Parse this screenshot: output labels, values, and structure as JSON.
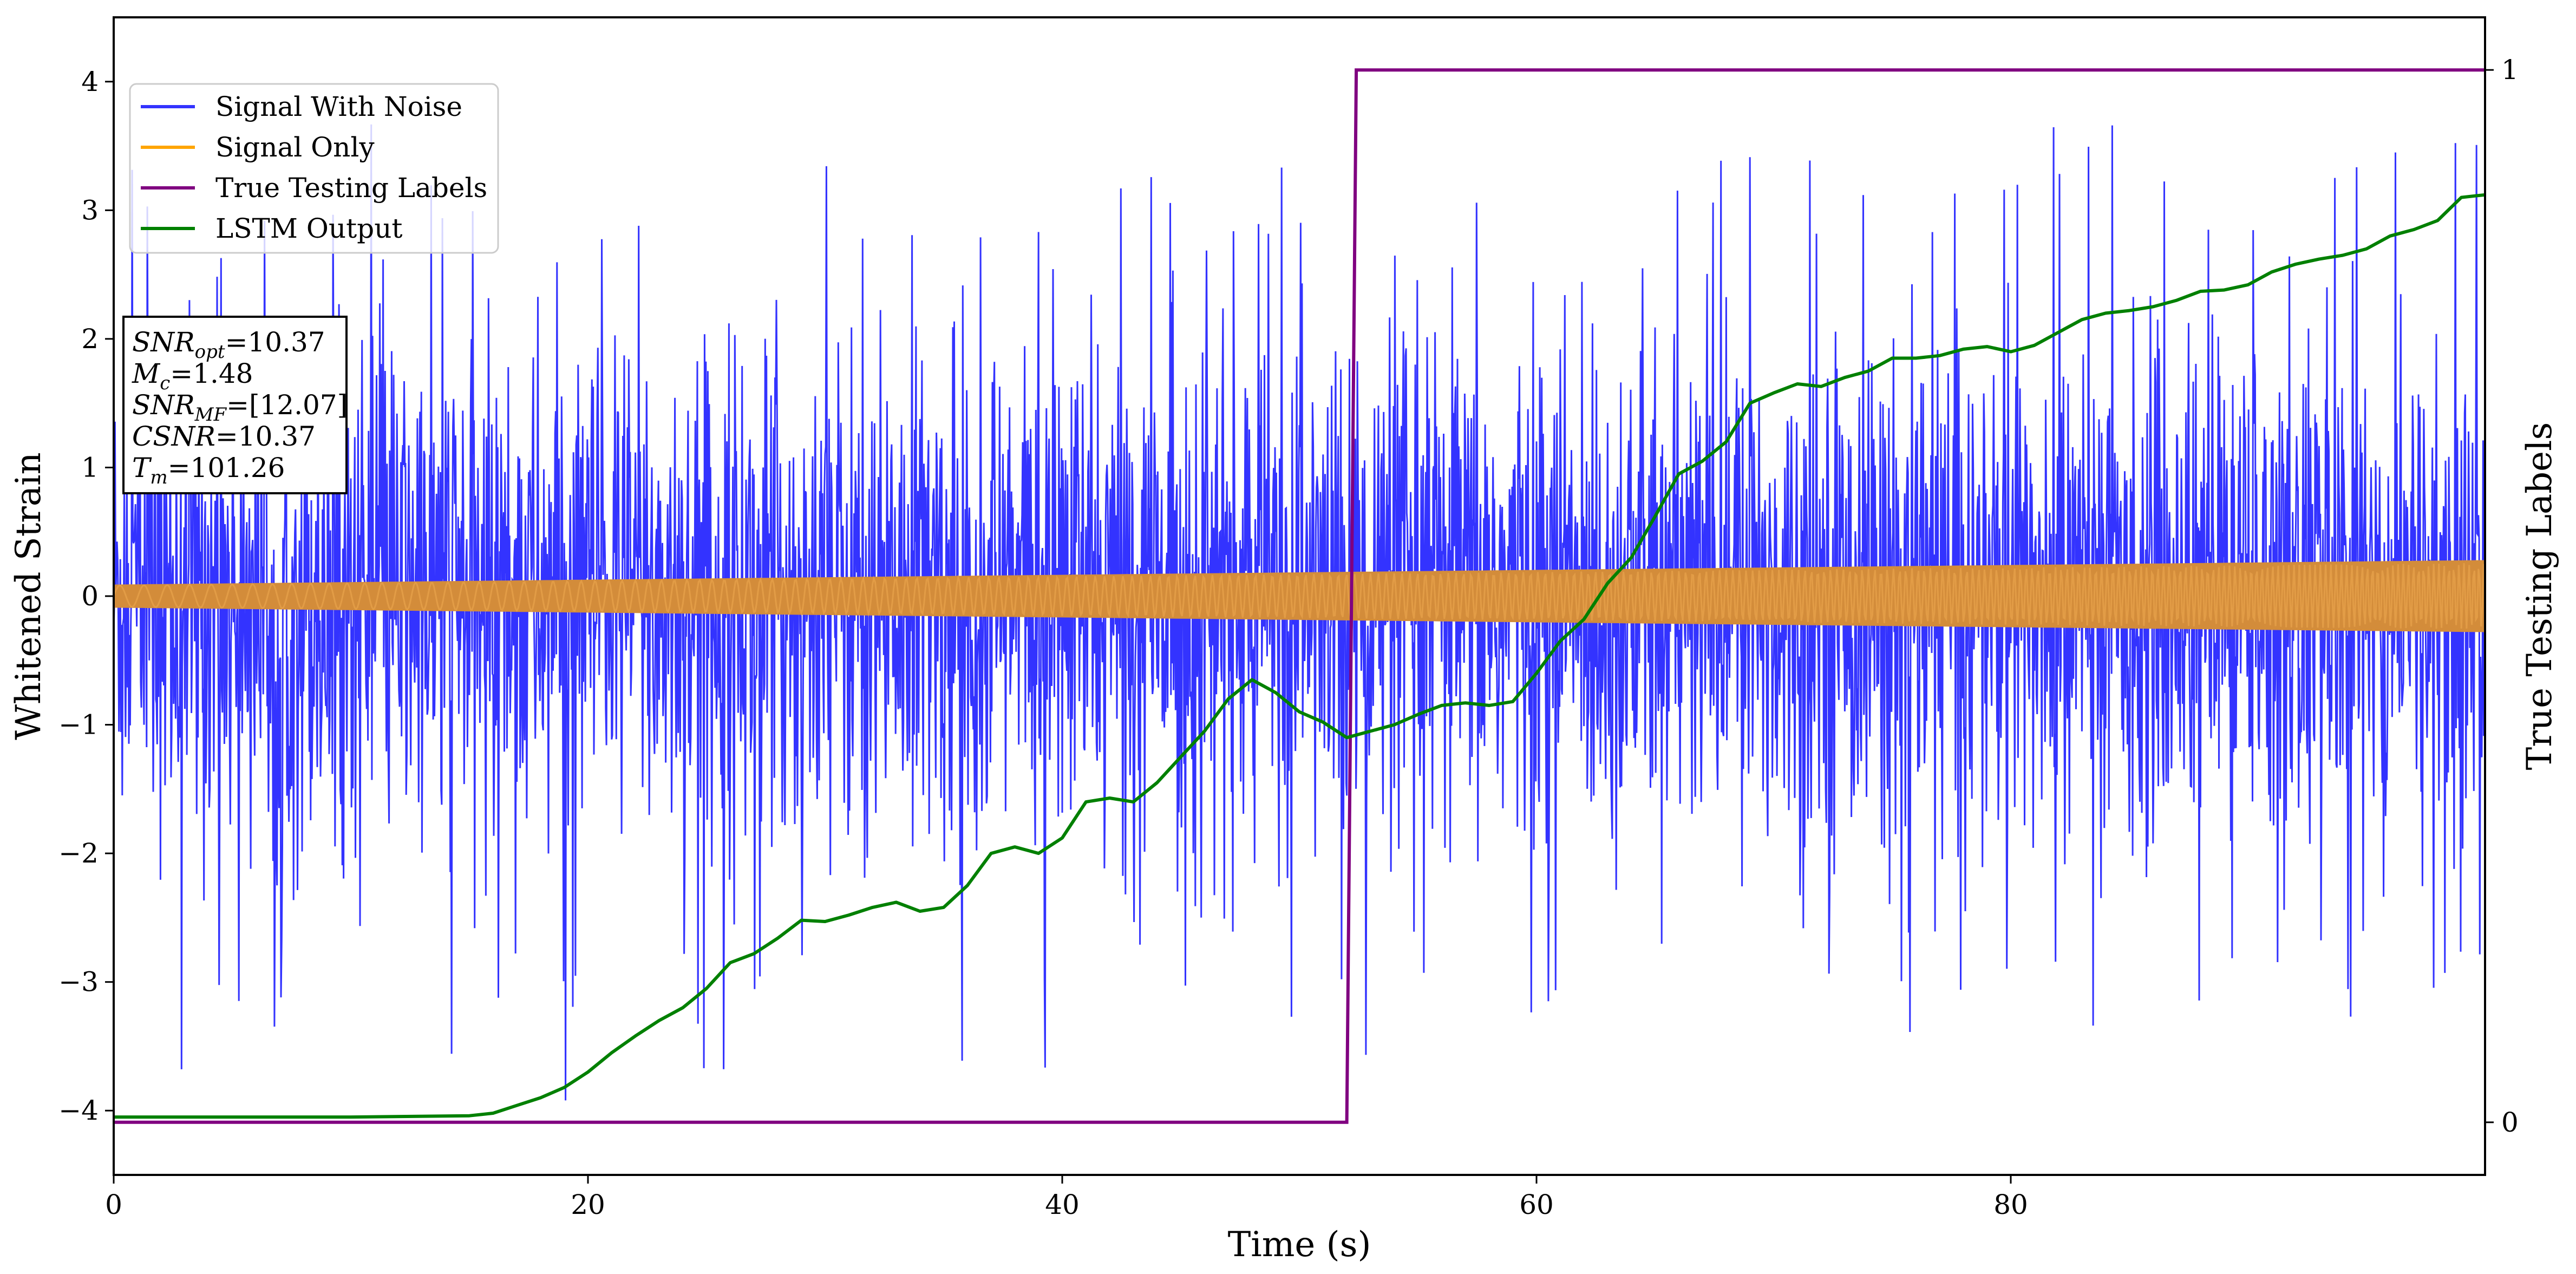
{
  "chart_data": {
    "type": "line",
    "title": "",
    "xlabel": "Time (s)",
    "ylabel": "Whitened Strain",
    "ylabel_right": "True Testing Labels",
    "xlim": [
      0,
      100
    ],
    "ylim": [
      -4.5,
      4.5
    ],
    "ylim_right": [
      -0.05,
      1.05
    ],
    "x_ticks": [
      "0",
      "20",
      "40",
      "60",
      "80"
    ],
    "x_tick_values": [
      0,
      20,
      40,
      60,
      80
    ],
    "y_ticks": [
      "−4",
      "−3",
      "−2",
      "−1",
      "0",
      "1",
      "2",
      "3",
      "4"
    ],
    "y_tick_values": [
      -4,
      -3,
      -2,
      -1,
      0,
      1,
      2,
      3,
      4
    ],
    "y_right_ticks": [
      "0",
      "1"
    ],
    "y_right_tick_values": [
      0,
      1
    ],
    "grid": false,
    "legend_position": "top-left",
    "legend": [
      {
        "label": "Signal With Noise",
        "color": "#3333ff"
      },
      {
        "label": "Signal Only",
        "color": "#ffa500"
      },
      {
        "label": "True Testing Labels",
        "color": "#800080"
      },
      {
        "label": "LSTM Output",
        "color": "#008000"
      }
    ],
    "series": [
      {
        "name": "Signal With Noise",
        "color": "#3333ff",
        "typical_amplitude": 1.3,
        "peak_range": [
          -4.05,
          3.8
        ],
        "x_range": [
          0,
          100
        ]
      },
      {
        "name": "Signal Only",
        "color": "#ffa500",
        "amplitude_start": 0.09,
        "amplitude_end": 0.28,
        "x_range": [
          0,
          100
        ]
      },
      {
        "name": "True Testing Labels",
        "color": "#800080",
        "axis": "right",
        "x": [
          0,
          52.0,
          52.4,
          100
        ],
        "y": [
          0,
          0,
          1,
          1
        ]
      },
      {
        "name": "LSTM Output",
        "color": "#008000",
        "axis": "left",
        "x": [
          0,
          10,
          15,
          16,
          17,
          18,
          19,
          20,
          21,
          22,
          23,
          24,
          25,
          26,
          27,
          28,
          29,
          30,
          31,
          32,
          33,
          34,
          35,
          36,
          37,
          38,
          39,
          40,
          41,
          42,
          43,
          44,
          45,
          46,
          47,
          48,
          49,
          50,
          51,
          52,
          53,
          54,
          55,
          56,
          57,
          58,
          59,
          60,
          61,
          62,
          63,
          64,
          65,
          66,
          67,
          68,
          69,
          70,
          71,
          72,
          73,
          74,
          75,
          76,
          77,
          78,
          79,
          80,
          81,
          82,
          83,
          84,
          85,
          86,
          87,
          88,
          89,
          90,
          91,
          92,
          93,
          94,
          95,
          96,
          97,
          98,
          99,
          100
        ],
        "y": [
          -4.05,
          -4.05,
          -4.04,
          -4.02,
          -3.96,
          -3.9,
          -3.82,
          -3.7,
          -3.55,
          -3.42,
          -3.3,
          -3.2,
          -3.05,
          -2.85,
          -2.78,
          -2.66,
          -2.52,
          -2.53,
          -2.48,
          -2.42,
          -2.38,
          -2.45,
          -2.42,
          -2.25,
          -2.0,
          -1.95,
          -2.0,
          -1.88,
          -1.6,
          -1.57,
          -1.6,
          -1.45,
          -1.25,
          -1.05,
          -0.8,
          -0.65,
          -0.75,
          -0.9,
          -0.98,
          -1.1,
          -1.05,
          -1.0,
          -0.92,
          -0.85,
          -0.83,
          -0.85,
          -0.82,
          -0.6,
          -0.35,
          -0.18,
          0.1,
          0.3,
          0.62,
          0.95,
          1.05,
          1.2,
          1.5,
          1.58,
          1.65,
          1.63,
          1.7,
          1.75,
          1.85,
          1.85,
          1.87,
          1.92,
          1.94,
          1.9,
          1.95,
          2.05,
          2.15,
          2.2,
          2.22,
          2.25,
          2.3,
          2.37,
          2.38,
          2.42,
          2.52,
          2.58,
          2.62,
          2.65,
          2.7,
          2.8,
          2.85,
          2.92,
          3.1,
          3.12
        ]
      }
    ],
    "annotation": {
      "lines": [
        {
          "main": "SNR",
          "sub": "opt",
          "value": "=10.37"
        },
        {
          "main": "M",
          "sub": "c",
          "value": "=1.48"
        },
        {
          "main": "SNR",
          "sub": "MF",
          "value": "=[12.07]"
        },
        {
          "main": "CSNR",
          "sub": "",
          "value": "=10.37"
        },
        {
          "main": "T",
          "sub": "m",
          "value": "=101.26"
        }
      ]
    }
  }
}
